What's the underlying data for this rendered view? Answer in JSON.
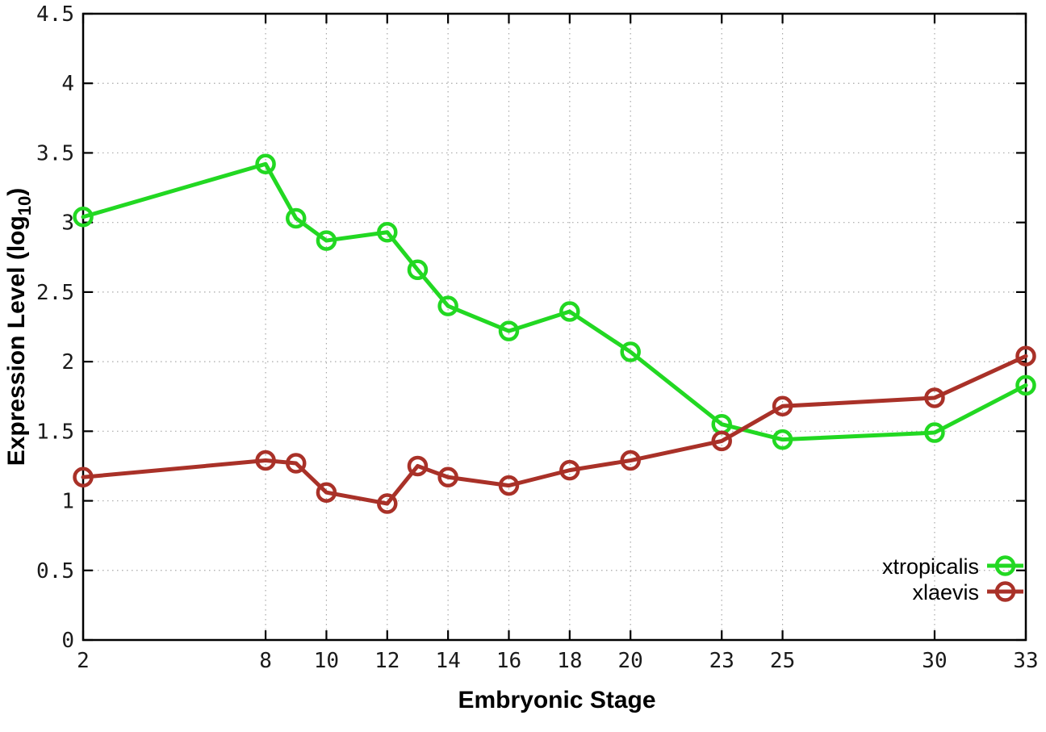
{
  "chart_data": {
    "type": "line",
    "title": "",
    "xlabel": "Embryonic Stage",
    "ylabel": {
      "text": "Expression Level (log",
      "sub": "10",
      "suffix": ")"
    },
    "x": [
      2,
      8,
      9,
      10,
      12,
      13,
      14,
      16,
      18,
      20,
      23,
      25,
      30,
      33
    ],
    "xticks": [
      2,
      8,
      10,
      12,
      14,
      16,
      18,
      20,
      23,
      25,
      30,
      33
    ],
    "yticks": [
      0,
      0.5,
      1,
      1.5,
      2,
      2.5,
      3,
      3.5,
      4,
      4.5
    ],
    "xlim": [
      2,
      33
    ],
    "ylim": [
      0,
      4.5
    ],
    "grid": true,
    "legend_position": "bottom-right",
    "series": [
      {
        "name": "xtropicalis",
        "color": "#22d822",
        "marker": "open-circle",
        "values": [
          3.04,
          3.42,
          3.03,
          2.87,
          2.93,
          2.66,
          2.4,
          2.22,
          2.36,
          2.07,
          1.55,
          1.44,
          1.49,
          1.83
        ]
      },
      {
        "name": "xlaevis",
        "color": "#a93128",
        "marker": "open-circle",
        "values": [
          1.17,
          1.29,
          1.27,
          1.06,
          0.98,
          1.25,
          1.17,
          1.11,
          1.22,
          1.29,
          1.43,
          1.68,
          1.74,
          2.04
        ]
      }
    ],
    "colors": {
      "border": "#000000",
      "grid": "#a8a8a8",
      "background": "#ffffff",
      "tick_text": "#1a1a1a"
    }
  }
}
